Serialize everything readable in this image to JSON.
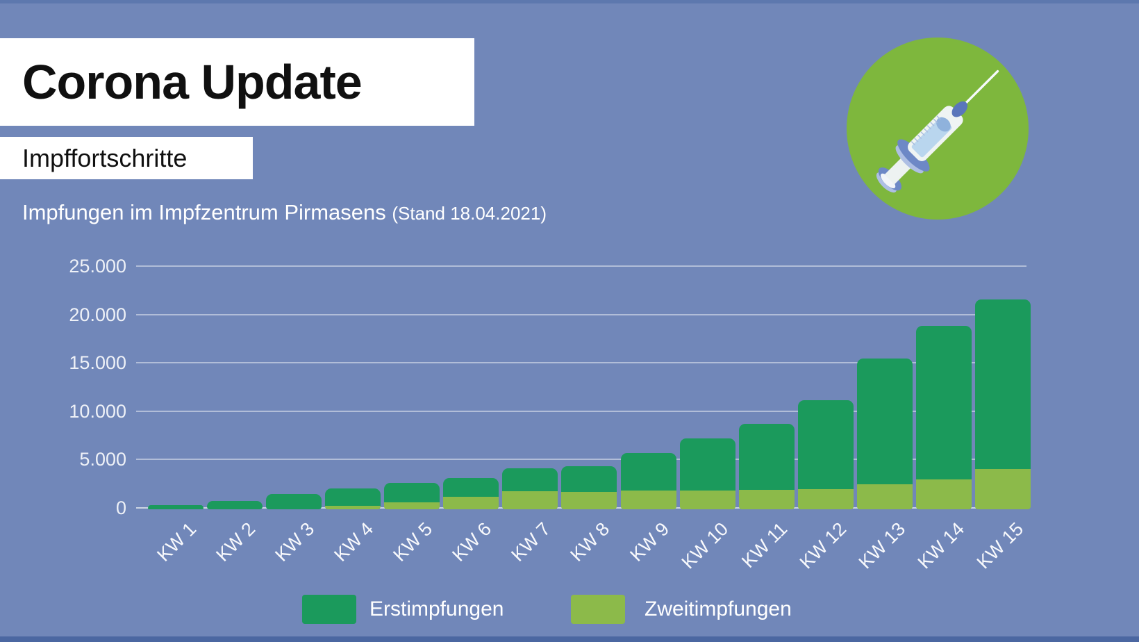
{
  "header": {
    "title": "Corona Update",
    "subtitle": "Impffortschritte"
  },
  "chart_title": {
    "main": "Impfungen im Impfzentrum Pirmasens",
    "stand": "(Stand 18.04.2021)"
  },
  "icons": {
    "badge": "syringe"
  },
  "colors": {
    "background": "#7187b9",
    "erstimpfungen_green": "#1b9a5c",
    "zweitimpfungen_green": "#8cba4a",
    "badge_circle_green": "#7eb73d",
    "text_white": "#ffffff",
    "title_black": "#101010"
  },
  "chart_data": {
    "type": "bar",
    "stacked": true,
    "grid": true,
    "legend_position": "bottom",
    "title": "Impfungen im Impfzentrum Pirmasens (Stand 18.04.2021)",
    "xlabel": "",
    "ylabel": "",
    "ylim": [
      0,
      25000
    ],
    "categories": [
      "KW 1",
      "KW 2",
      "KW 3",
      "KW 4",
      "KW 5",
      "KW 6",
      "KW 7",
      "KW 8",
      "KW 9",
      "KW 10",
      "KW 11",
      "KW 12",
      "KW 13",
      "KW 14",
      "KW 15"
    ],
    "series": [
      {
        "name": "Erstimpfungen",
        "color": "#1b9a5c",
        "values": [
          400,
          850,
          1600,
          1800,
          1950,
          1900,
          2350,
          2650,
          3900,
          5400,
          6850,
          9250,
          13050,
          15850,
          17500
        ]
      },
      {
        "name": "Zweitimpfungen",
        "color": "#8cba4a",
        "values": [
          0,
          0,
          0,
          350,
          750,
          1300,
          1900,
          1800,
          1950,
          1950,
          2000,
          2050,
          2550,
          3100,
          4200
        ]
      }
    ],
    "stacked_totals": [
      400,
      850,
      1600,
      2150,
      2700,
      3200,
      4250,
      4450,
      5850,
      7350,
      8850,
      11300,
      15600,
      18950,
      21700
    ],
    "yticks": [
      {
        "label": "25.000",
        "value": 25000
      },
      {
        "label": "20.000",
        "value": 20000
      },
      {
        "label": "15.000",
        "value": 15000
      },
      {
        "label": "10.000",
        "value": 10000
      },
      {
        "label": "5.000",
        "value": 5000
      },
      {
        "label": "0",
        "value": 0
      }
    ]
  },
  "legend": {
    "erst_label": "Erstimpfungen",
    "zweit_label": "Zweitimpfungen"
  }
}
